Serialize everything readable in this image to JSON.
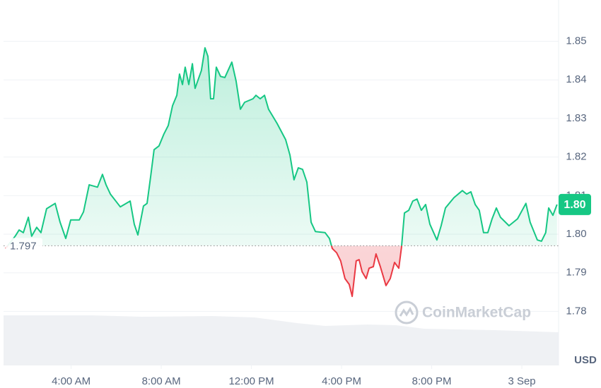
{
  "chart_data": {
    "type": "line",
    "unit_label": "USD",
    "watermark": "CoinMarketCap",
    "baseline": {
      "value": 1.797,
      "label": "1.797"
    },
    "price_label": "1.80",
    "up_color": "#16c784",
    "down_color": "#ea3943",
    "grid": true,
    "xlim": [
      1,
      25.63
    ],
    "xticks": [
      {
        "value": 4,
        "label": "4:00 AM"
      },
      {
        "value": 8,
        "label": "8:00 AM"
      },
      {
        "value": 12,
        "label": "12:00 PM"
      },
      {
        "value": 16,
        "label": "4:00 PM"
      },
      {
        "value": 20,
        "label": "8:00 PM"
      },
      {
        "value": 24,
        "label": "3 Sep"
      }
    ],
    "ylim": [
      1.766,
      1.8607
    ],
    "yticks": [
      {
        "value": 1.78,
        "label": "1.78"
      },
      {
        "value": 1.79,
        "label": "1.79"
      },
      {
        "value": 1.8,
        "label": "1.80"
      },
      {
        "value": 1.81,
        "label": "1.81"
      },
      {
        "value": 1.82,
        "label": "1.82"
      },
      {
        "value": 1.83,
        "label": "1.83"
      },
      {
        "value": 1.84,
        "label": "1.84"
      },
      {
        "value": 1.85,
        "label": "1.85"
      }
    ],
    "series": [
      {
        "x": [
          1.09,
          1.53,
          1.69,
          1.88,
          2.1,
          2.25,
          2.47,
          2.66,
          2.91,
          3.29,
          3.51,
          3.76,
          3.98,
          4.36,
          4.55,
          4.8,
          5.17,
          5.39,
          5.55,
          5.74,
          6.18,
          6.62,
          6.8,
          6.96,
          7.21,
          7.37,
          7.53,
          7.68,
          7.9,
          8.12,
          8.31,
          8.5,
          8.69,
          8.81,
          8.94,
          9.06,
          9.22,
          9.38,
          9.5,
          9.78,
          9.94,
          10.07,
          10.19,
          10.32,
          10.44,
          10.63,
          10.82,
          11.13,
          11.32,
          11.51,
          11.7,
          12.07,
          12.2,
          12.39,
          12.58,
          12.76,
          13.14,
          13.52,
          13.71,
          13.89,
          14.08,
          14.27,
          14.46,
          14.65,
          14.84,
          15.27,
          15.46,
          15.59,
          15.78,
          15.96,
          16.15,
          16.34,
          16.47,
          16.65,
          16.78,
          16.91,
          17.09,
          17.22,
          17.41,
          17.53,
          17.72,
          17.97,
          18.16,
          18.35,
          18.54,
          18.66,
          18.79,
          18.98,
          19.16,
          19.35,
          19.54,
          19.73,
          19.92,
          20.23,
          20.42,
          20.61,
          20.99,
          21.36,
          21.55,
          21.74,
          21.93,
          22.11,
          22.3,
          22.49,
          22.68,
          22.87,
          23.05,
          23.43,
          23.81,
          24.18,
          24.37,
          24.69,
          24.87,
          25.06,
          25.19,
          25.38,
          25.56
        ],
        "values": [
          1.7963,
          1.7996,
          1.8011,
          1.8004,
          1.8044,
          1.7995,
          1.8018,
          1.8004,
          1.8066,
          1.808,
          1.8031,
          1.7989,
          1.8037,
          1.8037,
          1.8058,
          1.8128,
          1.8122,
          1.8155,
          1.8128,
          1.8104,
          1.8071,
          1.8086,
          1.8026,
          1.7998,
          1.8073,
          1.808,
          1.815,
          1.8219,
          1.8229,
          1.826,
          1.8282,
          1.8333,
          1.836,
          1.8415,
          1.8388,
          1.8433,
          1.8388,
          1.8442,
          1.8378,
          1.8424,
          1.8483,
          1.8461,
          1.8351,
          1.8351,
          1.8433,
          1.8409,
          1.8406,
          1.8446,
          1.8397,
          1.8324,
          1.8342,
          1.8351,
          1.836,
          1.8351,
          1.836,
          1.8324,
          1.8287,
          1.8245,
          1.8205,
          1.8141,
          1.8172,
          1.8168,
          1.8135,
          1.8031,
          1.8007,
          1.8004,
          1.7989,
          1.7963,
          1.7952,
          1.7931,
          1.7885,
          1.787,
          1.7839,
          1.7931,
          1.7934,
          1.7903,
          1.7885,
          1.7912,
          1.7916,
          1.7949,
          1.7916,
          1.7867,
          1.7885,
          1.7927,
          1.7912,
          1.7967,
          1.8055,
          1.8062,
          1.8086,
          1.8091,
          1.8062,
          1.8077,
          1.8026,
          1.7985,
          1.8022,
          1.8068,
          1.8095,
          1.8113,
          1.8104,
          1.811,
          1.8077,
          1.8062,
          1.8004,
          1.8004,
          1.804,
          1.8068,
          1.8044,
          1.8022,
          1.804,
          1.808,
          1.8031,
          1.7985,
          1.7982,
          1.8004,
          1.8068,
          1.8049,
          1.8077
        ]
      }
    ]
  }
}
